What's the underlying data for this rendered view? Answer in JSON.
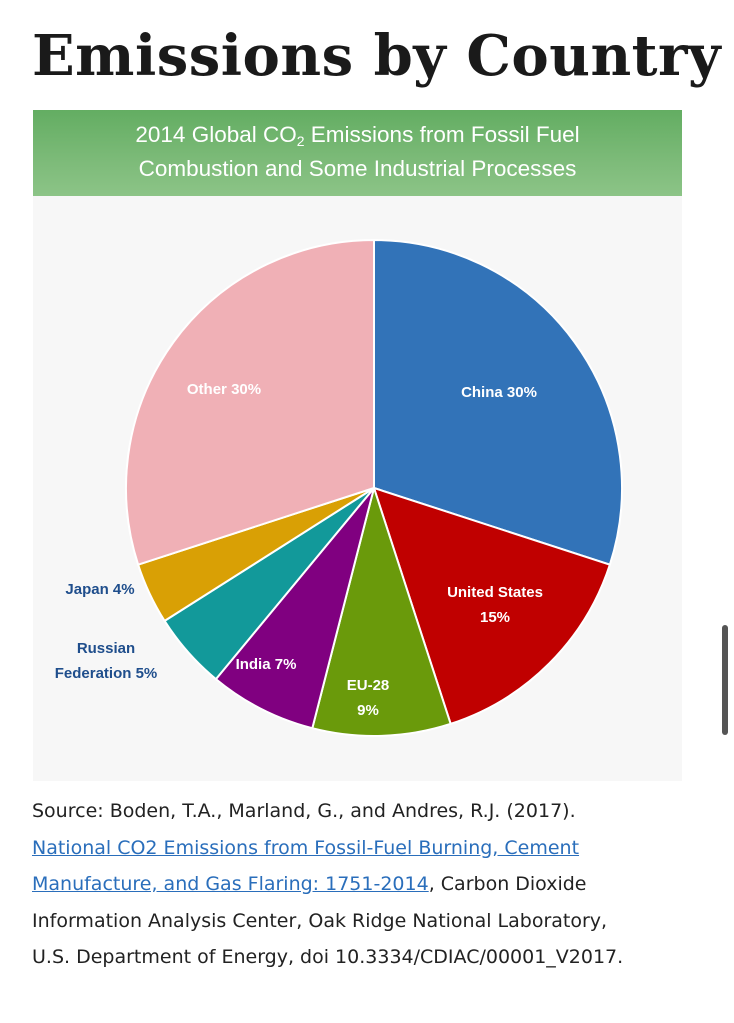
{
  "page": {
    "title": "Emissions by Country"
  },
  "chart_data": {
    "type": "pie",
    "title_line1_pre": "2014 Global CO",
    "title_sub": "2",
    "title_line1_post": " Emissions from Fossil Fuel",
    "title_line2": "Combustion and Some Industrial Processes",
    "slices": [
      {
        "label": "China 30%",
        "lines": [
          "China 30%"
        ],
        "value": 30,
        "color": "#3273b8",
        "label_color": "#ffffff"
      },
      {
        "label": "United States 15%",
        "lines": [
          "United States",
          "15%"
        ],
        "value": 15,
        "color": "#c00000",
        "label_color": "#ffffff"
      },
      {
        "label": "EU-28 9%",
        "lines": [
          "EU-28",
          "9%"
        ],
        "value": 9,
        "color": "#6a9a0b",
        "label_color": "#ffffff"
      },
      {
        "label": "India 7%",
        "lines": [
          "India 7%"
        ],
        "value": 7,
        "color": "#800080",
        "label_color": "#ffffff"
      },
      {
        "label": "Russian Federation 5%",
        "lines": [
          "Russian",
          "Federation 5%"
        ],
        "value": 5,
        "color": "#12999a",
        "label_color": "#1f4e8c"
      },
      {
        "label": "Japan 4%",
        "lines": [
          "Japan 4%"
        ],
        "value": 4,
        "color": "#d9a005",
        "label_color": "#1f4e8c"
      },
      {
        "label": "Other 30%",
        "lines": [
          "Other 30%"
        ],
        "value": 30,
        "color": "#f0b0b6",
        "label_color": "#ffffff"
      }
    ]
  },
  "source": {
    "prefix": "Source: Boden, T.A., Marland, G., and Andres, R.J. (2017). ",
    "link_text": "National CO2 Emissions from Fossil-Fuel Burning, Cement Manufacture, and Gas Flaring: 1751-2014",
    "suffix": ", Carbon Dioxide Information Analysis Center, Oak Ridge National Laboratory, U.S. Department of Energy, doi 10.3334/CDIAC/00001_V2017."
  }
}
